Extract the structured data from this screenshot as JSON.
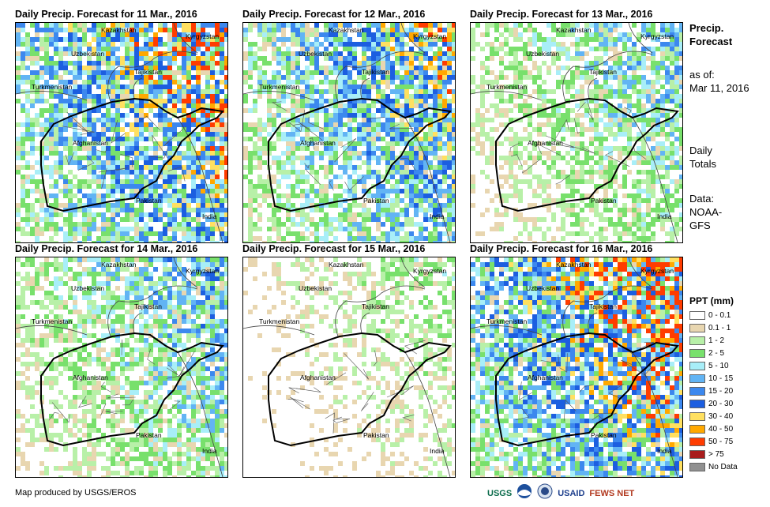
{
  "panels": [
    {
      "title": "Daily Precip. Forecast for 11 Mar., 2016",
      "intensity": 0.75
    },
    {
      "title": "Daily Precip. Forecast for 12 Mar., 2016",
      "intensity": 0.6
    },
    {
      "title": "Daily Precip. Forecast for 13 Mar., 2016",
      "intensity": 0.35
    },
    {
      "title": "Daily Precip. Forecast for 14 Mar., 2016",
      "intensity": 0.4
    },
    {
      "title": "Daily Precip. Forecast for 15 Mar., 2016",
      "intensity": 0.2
    },
    {
      "title": "Daily Precip. Forecast for 16 Mar., 2016",
      "intensity": 0.85
    }
  ],
  "map_labels": {
    "kazakhstan": "Kazakhstan",
    "kyrgyzstan": "Kyrgyzstan",
    "uzbekistan": "Uzbekistan",
    "tajikistan": "Tajikistan",
    "turkmenistan": "Turkmenistan",
    "afghanistan": "Afghanistan",
    "pakistan": "Pakistan",
    "india": "India"
  },
  "sidebar": {
    "title_line1": "Precip.",
    "title_line2": "Forecast",
    "asof_line1": "as of:",
    "asof_line2": "Mar 11, 2016",
    "daily_line1": "Daily",
    "daily_line2": "Totals",
    "data_line1": "Data:",
    "data_line2": "NOAA-",
    "data_line3": "GFS"
  },
  "legend": {
    "title": "PPT (mm)",
    "items": [
      {
        "label": "0 - 0.1",
        "color": "#ffffff"
      },
      {
        "label": "0.1 - 1",
        "color": "#e8d6b0"
      },
      {
        "label": "1 - 2",
        "color": "#b8f0a8"
      },
      {
        "label": "2 - 5",
        "color": "#78e06c"
      },
      {
        "label": "5 - 10",
        "color": "#a8eef8"
      },
      {
        "label": "10 - 15",
        "color": "#62b4f4"
      },
      {
        "label": "15 - 20",
        "color": "#3c88ee"
      },
      {
        "label": "20 - 30",
        "color": "#1c5ee0"
      },
      {
        "label": "30 - 40",
        "color": "#ffe060"
      },
      {
        "label": "40 - 50",
        "color": "#ffa800"
      },
      {
        "label": "50 - 75",
        "color": "#ff3c00"
      },
      {
        "label": "> 75",
        "color": "#a81c1c"
      },
      {
        "label": "No Data",
        "color": "#909090"
      }
    ]
  },
  "footer": {
    "credit": "Map produced by USGS/EROS",
    "logo_usgs": "USGS",
    "logo_usaid": "USAID",
    "logo_fewsnet": "FEWS NET"
  }
}
